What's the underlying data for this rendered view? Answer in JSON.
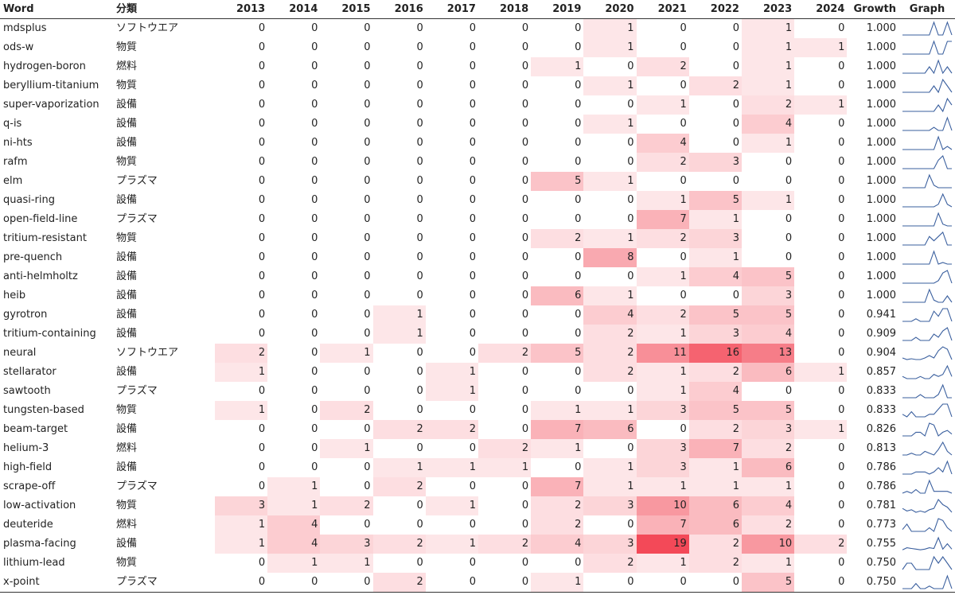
{
  "table": {
    "headers": {
      "word": "Word",
      "category": "分類",
      "years": [
        "2013",
        "2014",
        "2015",
        "2016",
        "2017",
        "2018",
        "2019",
        "2020",
        "2021",
        "2022",
        "2023",
        "2024"
      ],
      "growth": "Growth",
      "graph": "Graph"
    },
    "heat_color": "#f23b4b",
    "sparkline_color": "#3a5f9e",
    "rows": [
      {
        "word": "mdsplus",
        "category": "ソフトウエア",
        "counts": [
          0,
          0,
          0,
          0,
          0,
          0,
          0,
          1,
          0,
          0,
          1,
          0
        ],
        "growth": "1.000"
      },
      {
        "word": "ods-w",
        "category": "物質",
        "counts": [
          0,
          0,
          0,
          0,
          0,
          0,
          0,
          1,
          0,
          0,
          1,
          1
        ],
        "growth": "1.000"
      },
      {
        "word": "hydrogen-boron",
        "category": "燃料",
        "counts": [
          0,
          0,
          0,
          0,
          0,
          0,
          1,
          0,
          2,
          0,
          1,
          0
        ],
        "growth": "1.000"
      },
      {
        "word": "beryllium-titanium",
        "category": "物質",
        "counts": [
          0,
          0,
          0,
          0,
          0,
          0,
          0,
          1,
          0,
          2,
          1,
          0
        ],
        "growth": "1.000"
      },
      {
        "word": "super-vaporization",
        "category": "設備",
        "counts": [
          0,
          0,
          0,
          0,
          0,
          0,
          0,
          0,
          1,
          0,
          2,
          1
        ],
        "growth": "1.000"
      },
      {
        "word": "q-is",
        "category": "設備",
        "counts": [
          0,
          0,
          0,
          0,
          0,
          0,
          0,
          1,
          0,
          0,
          4,
          0
        ],
        "growth": "1.000"
      },
      {
        "word": "ni-hts",
        "category": "設備",
        "counts": [
          0,
          0,
          0,
          0,
          0,
          0,
          0,
          0,
          4,
          0,
          1,
          0
        ],
        "growth": "1.000"
      },
      {
        "word": "rafm",
        "category": "物質",
        "counts": [
          0,
          0,
          0,
          0,
          0,
          0,
          0,
          0,
          2,
          3,
          0,
          0
        ],
        "growth": "1.000"
      },
      {
        "word": "elm",
        "category": "プラズマ",
        "counts": [
          0,
          0,
          0,
          0,
          0,
          0,
          5,
          1,
          0,
          0,
          0,
          0
        ],
        "growth": "1.000"
      },
      {
        "word": "quasi-ring",
        "category": "設備",
        "counts": [
          0,
          0,
          0,
          0,
          0,
          0,
          0,
          0,
          1,
          5,
          1,
          0
        ],
        "growth": "1.000"
      },
      {
        "word": "open-field-line",
        "category": "プラズマ",
        "counts": [
          0,
          0,
          0,
          0,
          0,
          0,
          0,
          0,
          7,
          1,
          0,
          0
        ],
        "growth": "1.000"
      },
      {
        "word": "tritium-resistant",
        "category": "物質",
        "counts": [
          0,
          0,
          0,
          0,
          0,
          0,
          2,
          1,
          2,
          3,
          0,
          0
        ],
        "growth": "1.000"
      },
      {
        "word": "pre-quench",
        "category": "設備",
        "counts": [
          0,
          0,
          0,
          0,
          0,
          0,
          0,
          8,
          0,
          1,
          0,
          0
        ],
        "growth": "1.000"
      },
      {
        "word": "anti-helmholtz",
        "category": "設備",
        "counts": [
          0,
          0,
          0,
          0,
          0,
          0,
          0,
          0,
          1,
          4,
          5,
          0
        ],
        "growth": "1.000"
      },
      {
        "word": "heib",
        "category": "設備",
        "counts": [
          0,
          0,
          0,
          0,
          0,
          0,
          6,
          1,
          0,
          0,
          3,
          0
        ],
        "growth": "1.000"
      },
      {
        "word": "gyrotron",
        "category": "設備",
        "counts": [
          0,
          0,
          0,
          1,
          0,
          0,
          0,
          4,
          2,
          5,
          5,
          0
        ],
        "growth": "0.941"
      },
      {
        "word": "tritium-containing",
        "category": "設備",
        "counts": [
          0,
          0,
          0,
          1,
          0,
          0,
          0,
          2,
          1,
          3,
          4,
          0
        ],
        "growth": "0.909"
      },
      {
        "word": "neural",
        "category": "ソフトウエア",
        "counts": [
          2,
          0,
          1,
          0,
          0,
          2,
          5,
          2,
          11,
          16,
          13,
          0
        ],
        "growth": "0.904"
      },
      {
        "word": "stellarator",
        "category": "設備",
        "counts": [
          1,
          0,
          0,
          0,
          1,
          0,
          0,
          2,
          1,
          2,
          6,
          1
        ],
        "growth": "0.857"
      },
      {
        "word": "sawtooth",
        "category": "プラズマ",
        "counts": [
          0,
          0,
          0,
          0,
          1,
          0,
          0,
          0,
          1,
          4,
          0,
          0
        ],
        "growth": "0.833"
      },
      {
        "word": "tungsten-based",
        "category": "物質",
        "counts": [
          1,
          0,
          2,
          0,
          0,
          0,
          1,
          1,
          3,
          5,
          5,
          0
        ],
        "growth": "0.833"
      },
      {
        "word": "beam-target",
        "category": "設備",
        "counts": [
          0,
          0,
          0,
          2,
          2,
          0,
          7,
          6,
          0,
          2,
          3,
          1
        ],
        "growth": "0.826"
      },
      {
        "word": "helium-3",
        "category": "燃料",
        "counts": [
          0,
          0,
          1,
          0,
          0,
          2,
          1,
          0,
          3,
          7,
          2,
          0
        ],
        "growth": "0.813"
      },
      {
        "word": "high-field",
        "category": "設備",
        "counts": [
          0,
          0,
          0,
          1,
          1,
          1,
          0,
          1,
          3,
          1,
          6,
          0
        ],
        "growth": "0.786"
      },
      {
        "word": "scrape-off",
        "category": "プラズマ",
        "counts": [
          0,
          1,
          0,
          2,
          0,
          0,
          7,
          1,
          1,
          1,
          1,
          0
        ],
        "growth": "0.786"
      },
      {
        "word": "low-activation",
        "category": "物質",
        "counts": [
          3,
          1,
          2,
          0,
          1,
          0,
          2,
          3,
          10,
          6,
          4,
          0
        ],
        "growth": "0.781"
      },
      {
        "word": "deuteride",
        "category": "燃料",
        "counts": [
          1,
          4,
          0,
          0,
          0,
          0,
          2,
          0,
          7,
          6,
          2,
          0
        ],
        "growth": "0.773"
      },
      {
        "word": "plasma-facing",
        "category": "設備",
        "counts": [
          1,
          4,
          3,
          2,
          1,
          2,
          4,
          3,
          19,
          2,
          10,
          2
        ],
        "growth": "0.755"
      },
      {
        "word": "lithium-lead",
        "category": "物質",
        "counts": [
          0,
          1,
          1,
          0,
          0,
          0,
          0,
          2,
          1,
          2,
          1,
          0
        ],
        "growth": "0.750"
      },
      {
        "word": "x-point",
        "category": "プラズマ",
        "counts": [
          0,
          0,
          0,
          2,
          0,
          0,
          1,
          0,
          0,
          0,
          5,
          0
        ],
        "growth": "0.750"
      }
    ]
  }
}
